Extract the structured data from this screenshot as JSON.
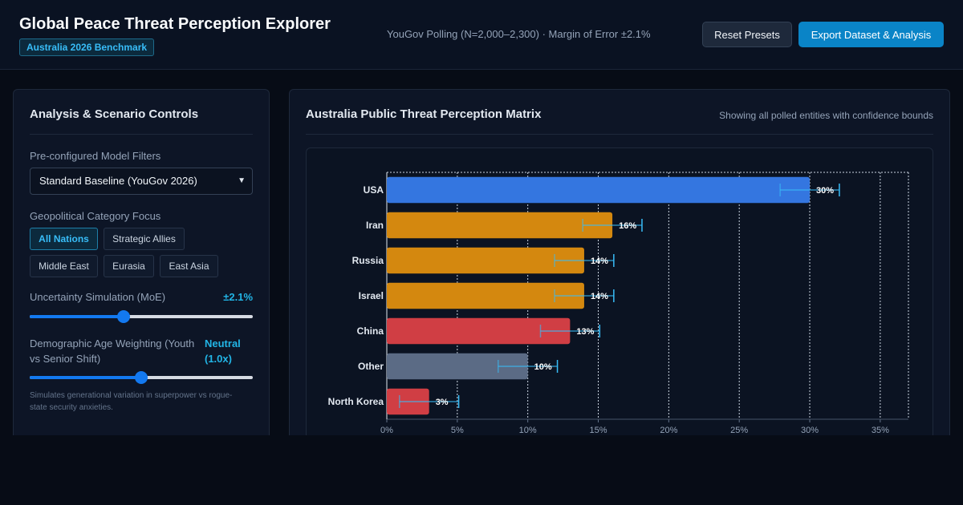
{
  "header": {
    "title": "Global Peace Threat Perception Explorer",
    "badge": "Australia 2026 Benchmark",
    "poll_info": "YouGov Polling (N=2,000–2,300) · Margin of Error ±2.1%",
    "reset_label": "Reset Presets",
    "export_label": "Export Dataset & Analysis"
  },
  "controls": {
    "title": "Analysis & Scenario Controls",
    "filter_label": "Pre-configured Model Filters",
    "filter_selected": "Standard Baseline (YouGov 2026)",
    "category_label": "Geopolitical Category Focus",
    "categories": [
      "All Nations",
      "Strategic Allies",
      "Middle East",
      "Eurasia",
      "East Asia"
    ],
    "active_category": "All Nations",
    "moe_label": "Uncertainty Simulation (MoE)",
    "moe_value": "±2.1%",
    "moe_slider_fraction": 0.42,
    "age_label": "Demographic Age Weighting (Youth vs Senior Shift)",
    "age_value": "Neutral (1.0x)",
    "age_slider_fraction": 0.5,
    "hint": "Simulates generational variation in superpower vs rogue-state security anxieties."
  },
  "chart_panel": {
    "title": "Australia Public Threat Perception Matrix",
    "subtitle": "Showing all polled entities with confidence bounds"
  },
  "chart_data": {
    "type": "bar",
    "orientation": "horizontal",
    "categories": [
      "USA",
      "Iran",
      "Russia",
      "Israel",
      "China",
      "Other",
      "North Korea"
    ],
    "values": [
      30,
      16,
      14,
      14,
      13,
      10,
      3
    ],
    "value_labels": [
      "30%",
      "16%",
      "14%",
      "14%",
      "13%",
      "10%",
      "3%"
    ],
    "error_margin": 2.1,
    "colors": [
      "#3476e0",
      "#d4880f",
      "#d4880f",
      "#d4880f",
      "#d03e44",
      "#5b6b85",
      "#d03e44"
    ],
    "error_color": "#38bdf8",
    "xlim": [
      0,
      37
    ],
    "xticks": [
      0,
      5,
      10,
      15,
      20,
      25,
      30,
      35
    ],
    "xtick_labels": [
      "0%",
      "5%",
      "10%",
      "15%",
      "20%",
      "25%",
      "30%",
      "35%"
    ],
    "grid": true
  }
}
